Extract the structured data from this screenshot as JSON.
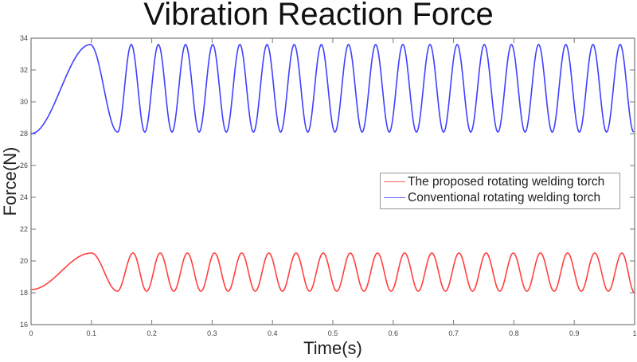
{
  "chart_data": {
    "type": "line",
    "title": "Vibration Reaction Force",
    "xlabel": "Time(s)",
    "ylabel": "Force(N)",
    "xlim": [
      0,
      1
    ],
    "ylim": [
      16,
      34
    ],
    "xticks": [
      "0",
      "0.1",
      "0.2",
      "0.3",
      "0.4",
      "0.5",
      "0.6",
      "0.7",
      "0.8",
      "0.9",
      "1"
    ],
    "yticks": [
      "16",
      "18",
      "20",
      "22",
      "24",
      "26",
      "28",
      "30",
      "32",
      "34"
    ],
    "grid": false,
    "legend_position": "right-middle",
    "series": [
      {
        "name": "The proposed rotating welding torch",
        "color": "#ff4040",
        "points": [
          [
            0,
            18.2
          ],
          [
            0.1,
            20.5
          ],
          [
            0.143,
            18.1
          ],
          [
            0.169,
            20.5
          ],
          [
            0.1915,
            18.1
          ],
          [
            0.214,
            20.5
          ],
          [
            0.2365,
            18.1
          ],
          [
            0.259,
            20.5
          ],
          [
            0.2815,
            18.1
          ],
          [
            0.304,
            20.5
          ],
          [
            0.3265,
            18.1
          ],
          [
            0.349,
            20.5
          ],
          [
            0.3715,
            18.1
          ],
          [
            0.394,
            20.5
          ],
          [
            0.4165,
            18.1
          ],
          [
            0.439,
            20.5
          ],
          [
            0.4615,
            18.1
          ],
          [
            0.484,
            20.5
          ],
          [
            0.5065,
            18.1
          ],
          [
            0.529,
            20.5
          ],
          [
            0.5515,
            18.1
          ],
          [
            0.574,
            20.5
          ],
          [
            0.5965,
            18.1
          ],
          [
            0.619,
            20.5
          ],
          [
            0.6415,
            18.1
          ],
          [
            0.664,
            20.5
          ],
          [
            0.6865,
            18.1
          ],
          [
            0.709,
            20.5
          ],
          [
            0.7315,
            18.1
          ],
          [
            0.754,
            20.5
          ],
          [
            0.7765,
            18.1
          ],
          [
            0.799,
            20.5
          ],
          [
            0.8215,
            18.1
          ],
          [
            0.844,
            20.5
          ],
          [
            0.8665,
            18.1
          ],
          [
            0.889,
            20.5
          ],
          [
            0.9115,
            18.1
          ],
          [
            0.934,
            20.5
          ],
          [
            0.9565,
            18.1
          ],
          [
            0.979,
            20.5
          ],
          [
            1.0,
            18.0
          ]
        ]
      },
      {
        "name": "Conventional rotating welding torch",
        "color": "#4040ff",
        "points": [
          [
            0,
            28.0
          ],
          [
            0.098,
            33.6
          ],
          [
            0.1435,
            28.1
          ],
          [
            0.166,
            33.6
          ],
          [
            0.1885,
            28.1
          ],
          [
            0.211,
            33.6
          ],
          [
            0.2335,
            28.1
          ],
          [
            0.256,
            33.6
          ],
          [
            0.2785,
            28.1
          ],
          [
            0.301,
            33.6
          ],
          [
            0.3235,
            28.1
          ],
          [
            0.346,
            33.6
          ],
          [
            0.3685,
            28.1
          ],
          [
            0.391,
            33.6
          ],
          [
            0.4135,
            28.1
          ],
          [
            0.436,
            33.6
          ],
          [
            0.4585,
            28.1
          ],
          [
            0.481,
            33.6
          ],
          [
            0.5035,
            28.1
          ],
          [
            0.526,
            33.6
          ],
          [
            0.5485,
            28.1
          ],
          [
            0.571,
            33.6
          ],
          [
            0.5935,
            28.1
          ],
          [
            0.616,
            33.6
          ],
          [
            0.6385,
            28.1
          ],
          [
            0.661,
            33.6
          ],
          [
            0.6835,
            28.1
          ],
          [
            0.706,
            33.6
          ],
          [
            0.7285,
            28.1
          ],
          [
            0.751,
            33.6
          ],
          [
            0.7735,
            28.1
          ],
          [
            0.796,
            33.6
          ],
          [
            0.8185,
            28.1
          ],
          [
            0.841,
            33.6
          ],
          [
            0.8635,
            28.1
          ],
          [
            0.886,
            33.6
          ],
          [
            0.9085,
            28.1
          ],
          [
            0.931,
            33.6
          ],
          [
            0.9535,
            28.1
          ],
          [
            0.976,
            33.6
          ],
          [
            0.9985,
            28.1
          ]
        ]
      }
    ]
  }
}
